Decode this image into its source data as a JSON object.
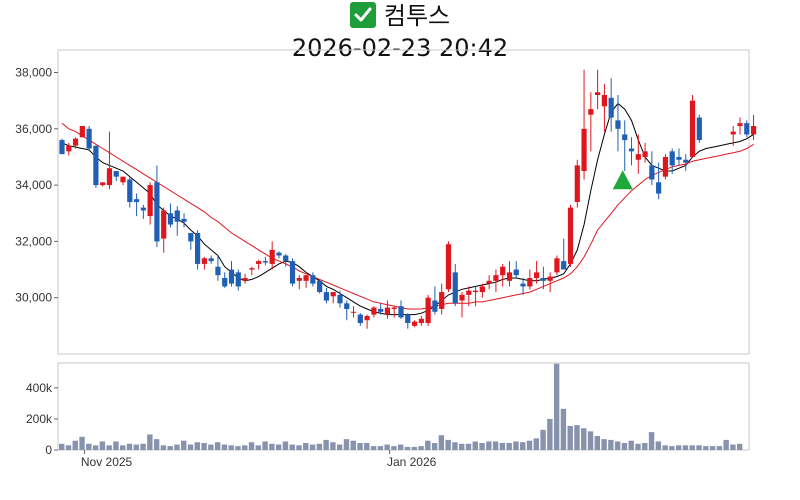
{
  "header": {
    "name": "컴투스",
    "datetime": "2026-02-23 20:42",
    "icon": "check-mark-icon",
    "icon_color": "#1f9d3a"
  },
  "chart_data": [
    {
      "type": "candlestick",
      "title": "컴투스",
      "ylim": [
        28000,
        38800
      ],
      "y_ticks": [
        30000,
        32000,
        34000,
        36000,
        38000
      ],
      "y_tick_labels": [
        "30,000",
        "32,000",
        "34,000",
        "36,000",
        "38,000"
      ],
      "x_tick_labels": [
        {
          "label": "Nov 2025",
          "index": 2
        },
        {
          "label": "Jan 2026",
          "index": 47
        }
      ],
      "up_color": "#e0161e",
      "down_color": "#1f5fb4",
      "ma_short_color": "#000000",
      "ma_long_color": "#e0161e",
      "signal": {
        "type": "buy-triangle",
        "index": 83,
        "value": 34100,
        "color": "#1ea83a"
      },
      "ohlc": [
        [
          35600,
          35650,
          35100,
          35100
        ],
        [
          35200,
          35500,
          35050,
          35400
        ],
        [
          35400,
          35700,
          35300,
          35650
        ],
        [
          35700,
          36100,
          35700,
          36100
        ],
        [
          36000,
          36100,
          35200,
          35300
        ],
        [
          35400,
          35400,
          33900,
          34000
        ],
        [
          34000,
          34100,
          33950,
          34100
        ],
        [
          34000,
          35900,
          33850,
          34600
        ],
        [
          34500,
          34500,
          34150,
          34300
        ],
        [
          34100,
          34300,
          34000,
          34300
        ],
        [
          34200,
          34300,
          33200,
          33400
        ],
        [
          33500,
          33700,
          32900,
          33400
        ],
        [
          33200,
          33300,
          32800,
          33100
        ],
        [
          32900,
          34100,
          32600,
          34000
        ],
        [
          34100,
          34700,
          31800,
          32000
        ],
        [
          32100,
          33200,
          31600,
          33100
        ],
        [
          33000,
          33350,
          32500,
          32600
        ],
        [
          33100,
          33250,
          32200,
          32700
        ],
        [
          32800,
          33000,
          32500,
          32700
        ],
        [
          32300,
          32300,
          31700,
          32000
        ],
        [
          32300,
          32400,
          31000,
          31200
        ],
        [
          31200,
          31450,
          31000,
          31400
        ],
        [
          31400,
          31500,
          31200,
          31300
        ],
        [
          31100,
          31500,
          30600,
          30800
        ],
        [
          30700,
          30900,
          30350,
          30400
        ],
        [
          31000,
          31300,
          30400,
          30500
        ],
        [
          30900,
          31000,
          30250,
          30400
        ],
        [
          30600,
          30850,
          30500,
          30700
        ],
        [
          31000,
          31100,
          30800,
          31050
        ],
        [
          31200,
          31350,
          31000,
          31300
        ],
        [
          31300,
          31450,
          31150,
          31250
        ],
        [
          31200,
          32000,
          31000,
          31700
        ],
        [
          31600,
          31650,
          31400,
          31500
        ],
        [
          31500,
          31550,
          31100,
          31300
        ],
        [
          31300,
          31400,
          30400,
          30500
        ],
        [
          30600,
          30800,
          30300,
          30700
        ],
        [
          30600,
          30800,
          30350,
          30800
        ],
        [
          30800,
          30900,
          30400,
          30500
        ],
        [
          30600,
          30650,
          30150,
          30200
        ],
        [
          30200,
          30350,
          29800,
          29900
        ],
        [
          30050,
          30200,
          29800,
          30200
        ],
        [
          30100,
          30250,
          29650,
          29800
        ],
        [
          29800,
          29900,
          29200,
          29600
        ],
        [
          29500,
          29700,
          29300,
          29500
        ],
        [
          29400,
          29450,
          29000,
          29100
        ],
        [
          29200,
          29400,
          28900,
          29350
        ],
        [
          29400,
          29700,
          29300,
          29650
        ],
        [
          29600,
          29800,
          29400,
          29500
        ],
        [
          29400,
          29900,
          29250,
          29650
        ],
        [
          29600,
          29700,
          29300,
          29650
        ],
        [
          29700,
          29900,
          29250,
          29300
        ],
        [
          29400,
          29450,
          28900,
          29100
        ],
        [
          29000,
          29200,
          28950,
          29150
        ],
        [
          29100,
          29350,
          29000,
          29250
        ],
        [
          29100,
          30100,
          29000,
          30000
        ],
        [
          29900,
          30400,
          29400,
          29500
        ],
        [
          29600,
          30500,
          29400,
          30200
        ],
        [
          30300,
          32000,
          30200,
          31900
        ],
        [
          30900,
          31200,
          29700,
          29800
        ],
        [
          29900,
          30200,
          29300,
          30100
        ],
        [
          30100,
          30400,
          29700,
          30250
        ],
        [
          30200,
          30400,
          29700,
          30250
        ],
        [
          30200,
          30500,
          30000,
          30400
        ],
        [
          30500,
          30800,
          30300,
          30600
        ],
        [
          30600,
          31000,
          30200,
          30800
        ],
        [
          30800,
          31200,
          30400,
          31100
        ],
        [
          30600,
          31300,
          30400,
          30900
        ],
        [
          31000,
          31300,
          30700,
          30800
        ],
        [
          30500,
          30700,
          30100,
          30400
        ],
        [
          30400,
          31000,
          30300,
          30700
        ],
        [
          30700,
          31300,
          30500,
          30900
        ],
        [
          30700,
          31100,
          30300,
          30600
        ],
        [
          30600,
          30900,
          30200,
          30750
        ],
        [
          30900,
          31500,
          30800,
          31400
        ],
        [
          31300,
          32100,
          31100,
          31000
        ],
        [
          31200,
          33300,
          31100,
          33200
        ],
        [
          33400,
          34900,
          33200,
          34700
        ],
        [
          34500,
          38100,
          34200,
          36000
        ],
        [
          36500,
          37300,
          35200,
          36700
        ],
        [
          37200,
          38100,
          36700,
          37300
        ]
      ],
      "ma_short": [
        35500,
        35400,
        35350,
        35300,
        35250,
        35000,
        34800,
        34700,
        34600,
        34500,
        34300,
        34100,
        33900,
        33700,
        33300,
        33100,
        32900,
        32800,
        32650,
        32400,
        32200,
        31900,
        31700,
        31500,
        31100,
        30900,
        30700,
        30600,
        30650,
        30750,
        30900,
        31050,
        31200,
        31300,
        31250,
        31100,
        30900,
        30750,
        30600,
        30400,
        30300,
        30150,
        30000,
        29850,
        29700,
        29600,
        29500,
        29450,
        29400,
        29400,
        29400,
        29400,
        29400,
        29450,
        29550,
        29700,
        29900,
        30100,
        30200,
        30300,
        30350,
        30400,
        30450,
        30500,
        30550,
        30650,
        30700,
        30700,
        30650,
        30600,
        30600,
        30650,
        30700,
        30750,
        30850,
        31200,
        31700,
        32600,
        33800,
        34900
      ],
      "ma_long": [
        36200,
        36000,
        35900,
        35750,
        35600,
        35450,
        35300,
        35150,
        35000,
        34850,
        34700,
        34550,
        34400,
        34250,
        34100,
        33950,
        33800,
        33650,
        33500,
        33350,
        33200,
        33050,
        32850,
        32700,
        32500,
        32300,
        32150,
        32000,
        31850,
        31700,
        31550,
        31400,
        31300,
        31200,
        31100,
        30950,
        30850,
        30750,
        30650,
        30550,
        30450,
        30350,
        30250,
        30150,
        30050,
        29950,
        29850,
        29800,
        29750,
        29700,
        29650,
        29600,
        29600,
        29600,
        29650,
        29700,
        29750,
        29800,
        29800,
        29800,
        29800,
        29850,
        29850,
        29900,
        29950,
        30000,
        30050,
        30100,
        30150,
        30200,
        30300,
        30400,
        30500,
        30600,
        30700,
        30850,
        31100,
        31450,
        31900,
        32400
      ],
      "extra": [
        [
          36800,
          37600,
          35900,
          37200
        ],
        [
          37100,
          37800,
          35900,
          36400
        ],
        [
          36300,
          37200,
          35200,
          36000
        ],
        [
          35800,
          36300,
          34500,
          35600
        ],
        [
          35300,
          35700,
          34700,
          35200
        ],
        [
          34900,
          35800,
          34400,
          35100
        ],
        [
          35000,
          35500,
          34800,
          35200
        ],
        [
          34700,
          35200,
          34000,
          34200
        ],
        [
          34100,
          34800,
          33500,
          33700
        ],
        [
          34300,
          35100,
          34200,
          35000
        ],
        [
          35200,
          35300,
          34400,
          34700
        ],
        [
          35000,
          35300,
          34700,
          34900
        ],
        [
          34900,
          35100,
          34500,
          34800
        ],
        [
          35000,
          37200,
          35000,
          37000
        ],
        [
          36400,
          36500,
          35500,
          35600
        ],
        [
          null,
          null,
          null,
          null
        ],
        [
          null,
          null,
          null,
          null
        ],
        [
          null,
          null,
          null,
          null
        ],
        [
          null,
          null,
          null,
          null
        ],
        [
          35800,
          36100,
          35400,
          35900
        ],
        [
          36100,
          36400,
          35800,
          36200
        ],
        [
          36200,
          36300,
          35700,
          35800
        ],
        [
          35800,
          36500,
          35600,
          36100
        ]
      ]
    },
    {
      "type": "bar",
      "title": "",
      "ylim": [
        0,
        560000
      ],
      "y_ticks": [
        0,
        200000,
        400000
      ],
      "y_tick_labels": [
        "0",
        "200k",
        "400k"
      ],
      "color": "#8892ad",
      "values": [
        40000,
        30000,
        60000,
        85000,
        40000,
        30000,
        55000,
        30000,
        55000,
        30000,
        40000,
        35000,
        40000,
        100000,
        70000,
        30000,
        25000,
        35000,
        60000,
        35000,
        50000,
        45000,
        35000,
        50000,
        35000,
        30000,
        25000,
        30000,
        50000,
        30000,
        55000,
        40000,
        35000,
        55000,
        35000,
        30000,
        45000,
        35000,
        40000,
        65000,
        50000,
        35000,
        70000,
        60000,
        45000,
        45000,
        25000,
        25000,
        35000,
        25000,
        35000,
        20000,
        20000,
        25000,
        60000,
        45000,
        95000,
        65000,
        50000,
        40000,
        40000,
        55000,
        45000,
        55000,
        55000,
        45000,
        45000,
        55000,
        50000,
        60000,
        75000,
        130000,
        200000,
        555000,
        265000,
        155000,
        160000,
        140000,
        120000,
        90000,
        70000,
        65000,
        55000,
        45000,
        60000,
        40000,
        45000,
        115000,
        55000,
        30000,
        25000,
        30000,
        30000,
        30000,
        30000,
        25000,
        25000,
        25000,
        65000,
        35000,
        40000
      ]
    }
  ]
}
